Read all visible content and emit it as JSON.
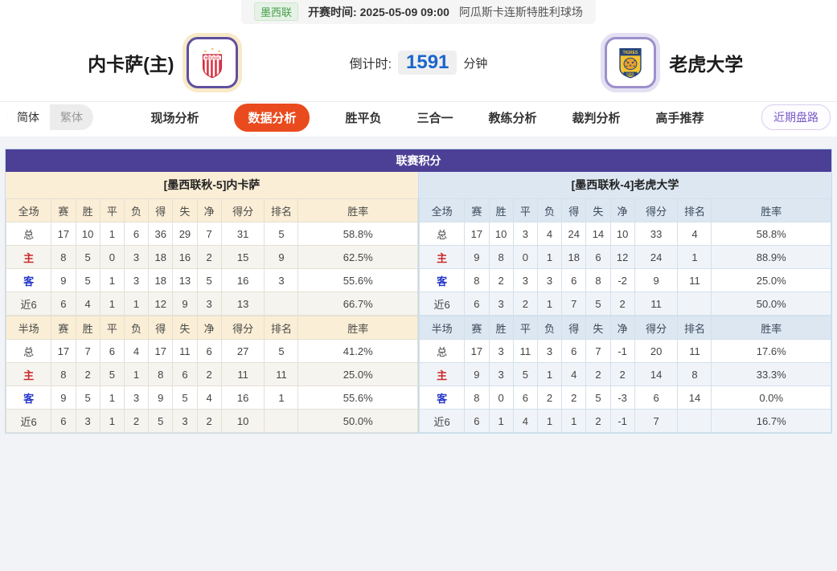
{
  "top_bar": {
    "league": "墨西联",
    "kickoff_label": "开赛时间:",
    "kickoff_time": "2025-05-09 09:00",
    "venue": "阿瓜斯卡连斯特胜利球场"
  },
  "match": {
    "home_name": "内卡萨(主)",
    "away_name": "老虎大学",
    "home_badge": "NECAXA",
    "away_badge": "TIGRES",
    "countdown_label": "倒计时:",
    "countdown_value": "1591",
    "countdown_unit": "分钟"
  },
  "nav": {
    "lang": [
      {
        "label": "简体",
        "active": true
      },
      {
        "label": "繁体",
        "active": false
      }
    ],
    "tabs": [
      {
        "label": "现场分析",
        "active": false
      },
      {
        "label": "数据分析",
        "active": true
      },
      {
        "label": "胜平负",
        "active": false
      },
      {
        "label": "三合一",
        "active": false
      },
      {
        "label": "教练分析",
        "active": false
      },
      {
        "label": "裁判分析",
        "active": false
      },
      {
        "label": "高手推荐",
        "active": false
      }
    ],
    "recent_button": "近期盘路"
  },
  "standings": {
    "title": "联赛积分",
    "col_labels": [
      "赛",
      "胜",
      "平",
      "负",
      "得",
      "失",
      "净",
      "得分",
      "排名",
      "胜率"
    ],
    "teams": [
      {
        "side": "home",
        "header": "[墨西联秋-5]内卡萨",
        "sections": [
          {
            "scope": "全场",
            "rows": [
              {
                "label": "总",
                "type": "total",
                "cells": [
                  "17",
                  "10",
                  "1",
                  "6",
                  "36",
                  "29",
                  "7",
                  "31",
                  "5",
                  "58.8%"
                ]
              },
              {
                "label": "主",
                "type": "home",
                "cells": [
                  "8",
                  "5",
                  "0",
                  "3",
                  "18",
                  "16",
                  "2",
                  "15",
                  "9",
                  "62.5%"
                ]
              },
              {
                "label": "客",
                "type": "away",
                "cells": [
                  "9",
                  "5",
                  "1",
                  "3",
                  "18",
                  "13",
                  "5",
                  "16",
                  "3",
                  "55.6%"
                ]
              },
              {
                "label": "近6",
                "type": "recent",
                "cells": [
                  "6",
                  "4",
                  "1",
                  "1",
                  "12",
                  "9",
                  "3",
                  "13",
                  "",
                  "66.7%"
                ]
              }
            ]
          },
          {
            "scope": "半场",
            "rows": [
              {
                "label": "总",
                "type": "total",
                "cells": [
                  "17",
                  "7",
                  "6",
                  "4",
                  "17",
                  "11",
                  "6",
                  "27",
                  "5",
                  "41.2%"
                ]
              },
              {
                "label": "主",
                "type": "home",
                "cells": [
                  "8",
                  "2",
                  "5",
                  "1",
                  "8",
                  "6",
                  "2",
                  "11",
                  "11",
                  "25.0%"
                ]
              },
              {
                "label": "客",
                "type": "away",
                "cells": [
                  "9",
                  "5",
                  "1",
                  "3",
                  "9",
                  "5",
                  "4",
                  "16",
                  "1",
                  "55.6%"
                ]
              },
              {
                "label": "近6",
                "type": "recent",
                "cells": [
                  "6",
                  "3",
                  "1",
                  "2",
                  "5",
                  "3",
                  "2",
                  "10",
                  "",
                  "50.0%"
                ]
              }
            ]
          }
        ]
      },
      {
        "side": "away",
        "header": "[墨西联秋-4]老虎大学",
        "sections": [
          {
            "scope": "全场",
            "rows": [
              {
                "label": "总",
                "type": "total",
                "cells": [
                  "17",
                  "10",
                  "3",
                  "4",
                  "24",
                  "14",
                  "10",
                  "33",
                  "4",
                  "58.8%"
                ]
              },
              {
                "label": "主",
                "type": "home",
                "cells": [
                  "9",
                  "8",
                  "0",
                  "1",
                  "18",
                  "6",
                  "12",
                  "24",
                  "1",
                  "88.9%"
                ]
              },
              {
                "label": "客",
                "type": "away",
                "cells": [
                  "8",
                  "2",
                  "3",
                  "3",
                  "6",
                  "8",
                  "-2",
                  "9",
                  "11",
                  "25.0%"
                ]
              },
              {
                "label": "近6",
                "type": "recent",
                "cells": [
                  "6",
                  "3",
                  "2",
                  "1",
                  "7",
                  "5",
                  "2",
                  "11",
                  "",
                  "50.0%"
                ]
              }
            ]
          },
          {
            "scope": "半场",
            "rows": [
              {
                "label": "总",
                "type": "total",
                "cells": [
                  "17",
                  "3",
                  "11",
                  "3",
                  "6",
                  "7",
                  "-1",
                  "20",
                  "11",
                  "17.6%"
                ]
              },
              {
                "label": "主",
                "type": "home",
                "cells": [
                  "9",
                  "3",
                  "5",
                  "1",
                  "4",
                  "2",
                  "2",
                  "14",
                  "8",
                  "33.3%"
                ]
              },
              {
                "label": "客",
                "type": "away",
                "cells": [
                  "8",
                  "0",
                  "6",
                  "2",
                  "2",
                  "5",
                  "-3",
                  "6",
                  "14",
                  "0.0%"
                ]
              },
              {
                "label": "近6",
                "type": "recent",
                "cells": [
                  "6",
                  "1",
                  "4",
                  "1",
                  "1",
                  "2",
                  "-1",
                  "7",
                  "",
                  "16.7%"
                ]
              }
            ]
          }
        ]
      }
    ]
  },
  "colors": {
    "header_purple": "#4c3f96",
    "home_panel_cream": "#faeed6",
    "away_panel_blue": "#dce7f2",
    "active_tab_orange": "#ea4b1e",
    "countdown_blue": "#1a66cc",
    "league_green": "#47a04b",
    "row_home_red": "#cc2929",
    "row_away_blue": "#2436c7",
    "recent_button_purple": "#7a5cc9"
  }
}
